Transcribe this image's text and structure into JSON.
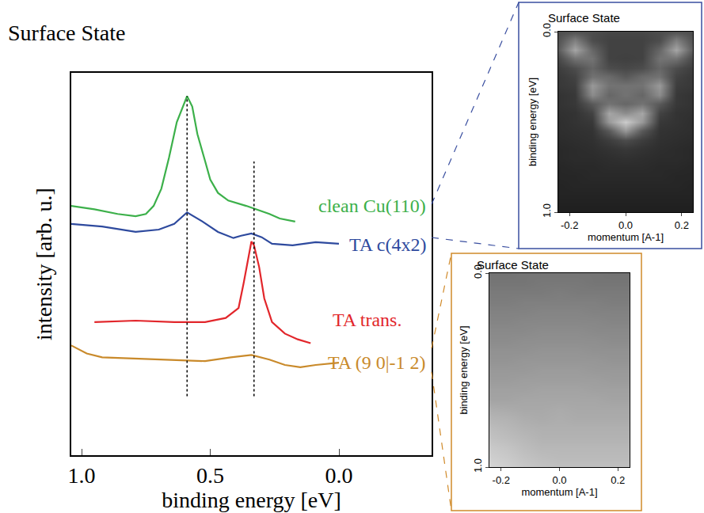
{
  "chart_data": [
    {
      "type": "line",
      "title": "Surface State",
      "x_label": "binding energy [eV]",
      "y_label": "intensity [arb. u.]",
      "xlim": [
        1.04,
        -0.36
      ],
      "xticks": [
        {
          "value": 1.0,
          "label": "1.0"
        },
        {
          "value": 0.5,
          "label": "0.5"
        },
        {
          "value": 0.0,
          "label": "0.0"
        }
      ],
      "ylim": [
        0,
        10
      ],
      "tick_labels": "x",
      "grid": false,
      "series": [
        {
          "name": "clean Cu(110)",
          "color": "#3cb04a",
          "label_at": [
            -0.345,
            6.52
          ],
          "x": [
            1.04,
            0.95,
            0.86,
            0.79,
            0.75,
            0.72,
            0.69,
            0.66,
            0.63,
            0.6,
            0.59,
            0.57,
            0.55,
            0.52,
            0.5,
            0.47,
            0.43,
            0.36,
            0.33,
            0.3,
            0.27,
            0.23,
            0.17
          ],
          "values": [
            6.52,
            6.43,
            6.31,
            6.25,
            6.31,
            6.52,
            6.97,
            7.79,
            8.71,
            9.22,
            9.39,
            9.12,
            8.4,
            7.69,
            7.21,
            6.86,
            6.66,
            6.52,
            6.45,
            6.39,
            6.31,
            6.19,
            6.11
          ]
        },
        {
          "name": "TA c(4x2)",
          "color": "#2e4a9e",
          "label_at": [
            -0.345,
            5.51
          ],
          "x": [
            1.04,
            0.92,
            0.79,
            0.7,
            0.64,
            0.59,
            0.53,
            0.47,
            0.41,
            0.38,
            0.34,
            0.3,
            0.26,
            0.18,
            0.09,
            0.0
          ],
          "values": [
            6.05,
            5.98,
            5.84,
            5.9,
            6.05,
            6.35,
            6.11,
            5.84,
            5.68,
            5.74,
            5.8,
            5.7,
            5.53,
            5.49,
            5.57,
            5.53
          ]
        },
        {
          "name": "TA trans.",
          "color": "#e2262b",
          "label_at": [
            -0.25,
            3.55
          ],
          "x": [
            0.95,
            0.79,
            0.64,
            0.52,
            0.44,
            0.39,
            0.37,
            0.35,
            0.34,
            0.33,
            0.31,
            0.29,
            0.26,
            0.21,
            0.16,
            0.11
          ],
          "values": [
            3.48,
            3.52,
            3.48,
            3.48,
            3.59,
            3.85,
            4.51,
            5.23,
            5.59,
            5.49,
            4.92,
            4.1,
            3.48,
            3.18,
            3.03,
            2.93
          ]
        },
        {
          "name": "TA (9 0|-1 2)",
          "color": "#c98a2b",
          "label_at": [
            -0.345,
            2.42
          ],
          "x": [
            1.04,
            0.98,
            0.92,
            0.7,
            0.52,
            0.42,
            0.34,
            0.27,
            0.21,
            0.15,
            0.09,
            0.0
          ],
          "values": [
            2.87,
            2.66,
            2.56,
            2.5,
            2.46,
            2.56,
            2.62,
            2.5,
            2.36,
            2.3,
            2.36,
            2.42
          ]
        }
      ],
      "vlines": [
        {
          "x": 0.59,
          "y": [
            1.54,
            9.39
          ]
        },
        {
          "x": 0.33,
          "y": [
            1.54,
            7.68
          ]
        }
      ]
    },
    {
      "type": "heatmap",
      "title": "Surface State",
      "x_label": "momentum [A-1]",
      "y_label": "binding energy [eV]",
      "xlim": [
        -0.24,
        0.24
      ],
      "xticks": [
        {
          "value": -0.2,
          "label": "-0.2"
        },
        {
          "value": 0.0,
          "label": "0.0"
        },
        {
          "value": 0.2,
          "label": "0.2"
        }
      ],
      "ylim": [
        1.0,
        0.0
      ],
      "yticks": [
        {
          "value": 0.0,
          "label": "0.0"
        },
        {
          "value": 1.0,
          "label": "1.0"
        }
      ],
      "zlim": [
        0,
        100
      ],
      "x": [
        -0.24,
        -0.18,
        -0.12,
        -0.06,
        0.0,
        0.06,
        0.12,
        0.18,
        0.24
      ],
      "y": [
        0.0,
        0.05,
        0.1,
        0.15,
        0.2,
        0.25,
        0.3,
        0.35,
        0.4,
        0.45,
        0.5,
        0.55,
        0.6,
        0.65,
        0.7,
        0.75,
        0.8,
        0.85,
        0.9,
        0.95,
        1.0
      ],
      "z": [
        [
          30,
          32,
          30,
          28,
          28,
          28,
          30,
          32,
          30
        ],
        [
          32,
          50,
          30,
          26,
          26,
          26,
          30,
          50,
          32
        ],
        [
          35,
          65,
          40,
          26,
          26,
          26,
          40,
          65,
          35
        ],
        [
          28,
          45,
          45,
          26,
          25,
          26,
          45,
          45,
          28
        ],
        [
          24,
          30,
          40,
          30,
          28,
          30,
          40,
          30,
          24
        ],
        [
          22,
          26,
          45,
          42,
          35,
          42,
          45,
          26,
          22
        ],
        [
          22,
          24,
          60,
          45,
          45,
          45,
          60,
          24,
          22
        ],
        [
          20,
          22,
          55,
          40,
          45,
          40,
          55,
          22,
          20
        ],
        [
          20,
          22,
          35,
          45,
          40,
          45,
          35,
          22,
          20
        ],
        [
          19,
          20,
          26,
          65,
          55,
          65,
          26,
          20,
          19
        ],
        [
          18,
          20,
          22,
          60,
          80,
          60,
          22,
          20,
          18
        ],
        [
          18,
          19,
          20,
          35,
          60,
          35,
          20,
          19,
          18
        ],
        [
          17,
          18,
          19,
          24,
          30,
          24,
          19,
          18,
          17
        ],
        [
          16,
          17,
          18,
          20,
          22,
          20,
          18,
          17,
          16
        ],
        [
          16,
          17,
          17,
          18,
          19,
          18,
          17,
          17,
          16
        ],
        [
          15,
          16,
          16,
          17,
          17,
          17,
          16,
          16,
          15
        ],
        [
          15,
          15,
          16,
          16,
          16,
          16,
          16,
          15,
          15
        ],
        [
          14,
          15,
          15,
          15,
          15,
          15,
          15,
          15,
          14
        ],
        [
          14,
          14,
          14,
          14,
          14,
          14,
          14,
          14,
          14
        ],
        [
          13,
          13,
          13,
          13,
          13,
          13,
          13,
          13,
          13
        ],
        [
          12,
          12,
          12,
          12,
          12,
          12,
          12,
          12,
          12
        ]
      ]
    },
    {
      "type": "heatmap",
      "title": "Surface State",
      "x_label": "momentum [A-1]",
      "y_label": "binding energy [eV]",
      "xlim": [
        -0.24,
        0.24
      ],
      "xticks": [
        {
          "value": -0.2,
          "label": "-0.2"
        },
        {
          "value": 0.0,
          "label": "0.0"
        },
        {
          "value": 0.2,
          "label": "0.2"
        }
      ],
      "ylim": [
        1.0,
        0.0
      ],
      "yticks": [
        {
          "value": 0.0,
          "label": "0.0"
        },
        {
          "value": 1.0,
          "label": "1.0"
        }
      ],
      "zlim": [
        0,
        100
      ],
      "x": [
        -0.24,
        -0.18,
        -0.12,
        -0.06,
        0.0,
        0.06,
        0.12,
        0.18,
        0.24
      ],
      "y": [
        0.0,
        0.05,
        0.1,
        0.15,
        0.2,
        0.25,
        0.3,
        0.35,
        0.4,
        0.45,
        0.5,
        0.55,
        0.6,
        0.65,
        0.7,
        0.75,
        0.8,
        0.85,
        0.9,
        0.95,
        1.0
      ],
      "z": [
        [
          45,
          45,
          46,
          46,
          46,
          46,
          46,
          45,
          45
        ],
        [
          46,
          46,
          46,
          47,
          47,
          47,
          46,
          46,
          46
        ],
        [
          48,
          48,
          48,
          48,
          49,
          48,
          48,
          48,
          48
        ],
        [
          49,
          49,
          50,
          50,
          50,
          50,
          50,
          49,
          49
        ],
        [
          51,
          51,
          51,
          52,
          52,
          52,
          51,
          51,
          51
        ],
        [
          52,
          52,
          53,
          53,
          53,
          53,
          53,
          52,
          52
        ],
        [
          54,
          54,
          54,
          55,
          55,
          55,
          54,
          54,
          54
        ],
        [
          55,
          55,
          56,
          56,
          56,
          56,
          56,
          55,
          55
        ],
        [
          57,
          57,
          57,
          58,
          58,
          58,
          57,
          57,
          57
        ],
        [
          58,
          58,
          59,
          59,
          59,
          59,
          59,
          58,
          58
        ],
        [
          60,
          60,
          60,
          61,
          61,
          61,
          60,
          60,
          60
        ],
        [
          61,
          61,
          62,
          62,
          62,
          62,
          62,
          61,
          61
        ],
        [
          63,
          63,
          63,
          64,
          64,
          64,
          63,
          63,
          63
        ],
        [
          64,
          64,
          65,
          65,
          65,
          65,
          65,
          64,
          64
        ],
        [
          68,
          67,
          66,
          66,
          67,
          66,
          66,
          66,
          66
        ],
        [
          71,
          70,
          68,
          67,
          68,
          67,
          67,
          67,
          67
        ],
        [
          74,
          72,
          70,
          69,
          69,
          69,
          69,
          69,
          69
        ],
        [
          76,
          74,
          72,
          70,
          70,
          70,
          70,
          70,
          70
        ],
        [
          79,
          77,
          74,
          72,
          72,
          72,
          72,
          72,
          72
        ],
        [
          81,
          79,
          76,
          74,
          73,
          73,
          73,
          73,
          73
        ],
        [
          84,
          81,
          78,
          76,
          75,
          75,
          75,
          75,
          75
        ]
      ]
    }
  ]
}
